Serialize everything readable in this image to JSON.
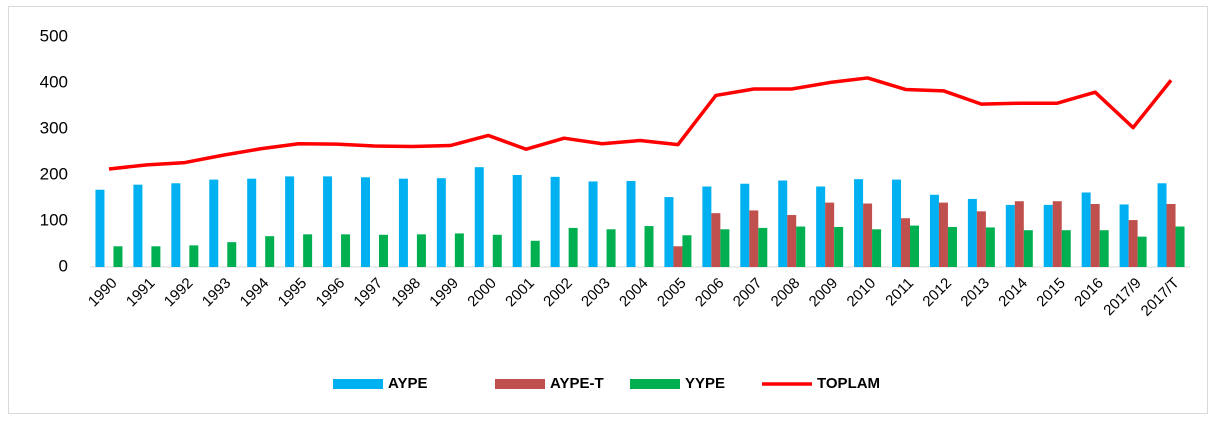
{
  "chart_data": {
    "type": "combo",
    "categories": [
      "1990",
      "1991",
      "1992",
      "1993",
      "1994",
      "1995",
      "1996",
      "1997",
      "1998",
      "1999",
      "2000",
      "2001",
      "2002",
      "2003",
      "2004",
      "2005",
      "2006",
      "2007",
      "2008",
      "2009",
      "2010",
      "2011",
      "2012",
      "2013",
      "2014",
      "2015",
      "2016",
      "2017/9",
      "2017/T"
    ],
    "series": [
      {
        "name": "AYPE",
        "type": "bar",
        "color": "#00b0f0",
        "values": [
          168,
          179,
          182,
          190,
          192,
          197,
          197,
          195,
          192,
          193,
          217,
          200,
          196,
          186,
          187,
          152,
          175,
          181,
          188,
          175,
          191,
          190,
          157,
          148,
          135,
          135,
          162,
          136,
          182
        ]
      },
      {
        "name": "AYPE-T",
        "type": "bar",
        "color": "#c0504d",
        "values": [
          null,
          null,
          null,
          null,
          null,
          null,
          null,
          null,
          null,
          null,
          null,
          null,
          null,
          null,
          null,
          45,
          117,
          123,
          113,
          140,
          138,
          106,
          140,
          121,
          143,
          143,
          137,
          102,
          137
        ]
      },
      {
        "name": "YYPE",
        "type": "bar",
        "color": "#00b050",
        "values": [
          45,
          45,
          47,
          54,
          67,
          71,
          71,
          70,
          71,
          73,
          70,
          57,
          85,
          82,
          89,
          69,
          82,
          85,
          88,
          87,
          82,
          90,
          87,
          86,
          80,
          80,
          80,
          66,
          88
        ]
      },
      {
        "name": "TOPLAM",
        "type": "line",
        "color": "#ff0000",
        "values": [
          213,
          222,
          227,
          243,
          257,
          268,
          267,
          263,
          262,
          264,
          286,
          256,
          280,
          268,
          275,
          266,
          373,
          387,
          387,
          401,
          411,
          386,
          383,
          354,
          356,
          356,
          380,
          303,
          406
        ]
      }
    ],
    "ylim": [
      0,
      500
    ],
    "yticks": [
      0,
      100,
      200,
      300,
      400,
      500
    ],
    "legend": "bottom"
  }
}
